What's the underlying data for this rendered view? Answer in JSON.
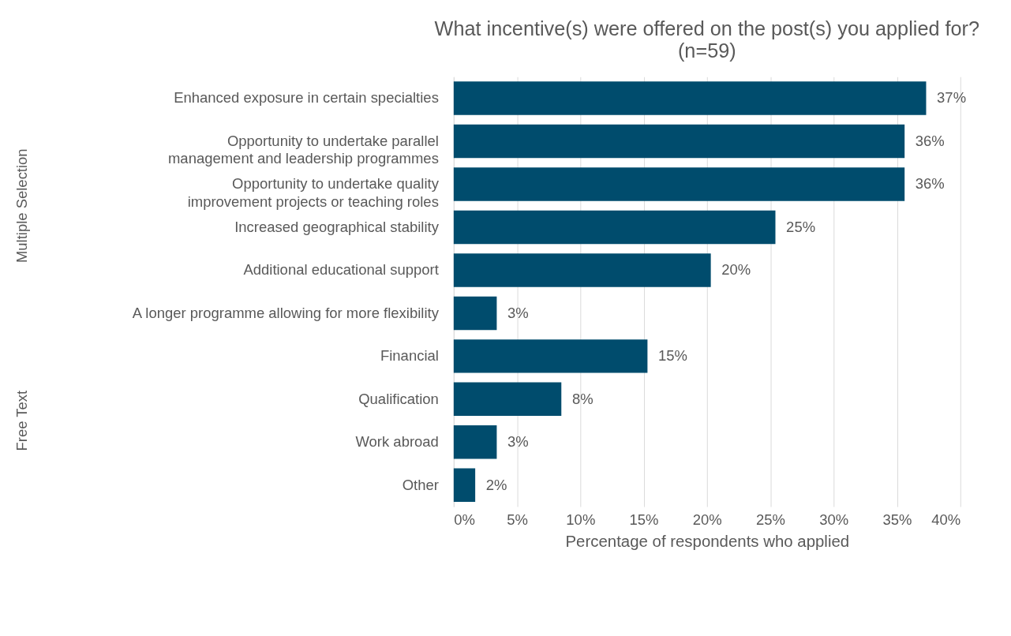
{
  "chart_data": {
    "type": "bar",
    "orientation": "horizontal",
    "title": "What incentive(s) were offered on the post(s) you applied for?",
    "subtitle": "(n=59)",
    "xlabel": "Percentage of respondents who applied",
    "categories": [
      "Enhanced exposure in certain specialties",
      "Opportunity to undertake parallel\nmanagement and leadership programmes",
      "Opportunity to undertake quality\nimprovement projects or teaching roles",
      "Increased geographical stability",
      "Additional educational support",
      "A longer programme allowing for more flexibility",
      "Financial",
      "Qualification",
      "Work abroad",
      "Other"
    ],
    "values": [
      37.3,
      35.6,
      35.6,
      25.4,
      20.3,
      3.4,
      15.3,
      8.5,
      3.4,
      1.7
    ],
    "value_labels": [
      "37%",
      "36%",
      "36%",
      "25%",
      "20%",
      "3%",
      "15%",
      "8%",
      "3%",
      "2%"
    ],
    "color": "#004c6d",
    "xlim": [
      0,
      40
    ],
    "xticks": [
      {
        "value": 0,
        "label": "0%"
      },
      {
        "value": 5,
        "label": "5%"
      },
      {
        "value": 10,
        "label": "10%"
      },
      {
        "value": 15,
        "label": "15%"
      },
      {
        "value": 20,
        "label": "20%"
      },
      {
        "value": 25,
        "label": "25%"
      },
      {
        "value": 30,
        "label": "30%"
      },
      {
        "value": 35,
        "label": "35%"
      },
      {
        "value": 40,
        "label": "40%"
      }
    ],
    "grid": "x",
    "annotations": [
      "Multiple Selection",
      "Free Text"
    ]
  }
}
